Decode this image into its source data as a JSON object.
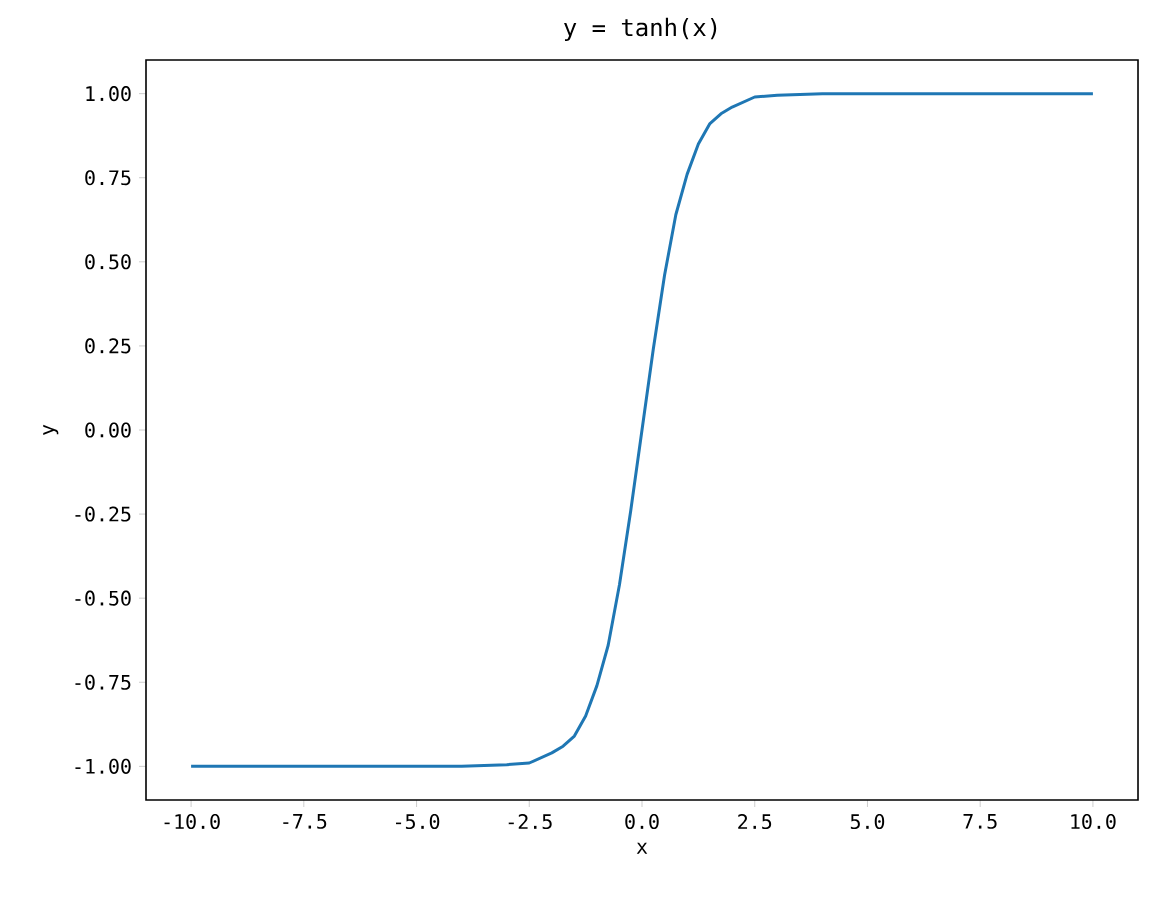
{
  "chart_data": {
    "type": "line",
    "title": "y = tanh(x)",
    "xlabel": "x",
    "ylabel": "y",
    "xlim": [
      -11,
      11
    ],
    "ylim": [
      -1.1,
      1.1
    ],
    "xticks": [
      {
        "value": -10,
        "label": "-10.0"
      },
      -7.5,
      {
        "value": -5,
        "label": "-5.0"
      },
      -2.5,
      {
        "value": 0,
        "label": "0.0"
      },
      2.5,
      {
        "value": 5,
        "label": "5.0"
      },
      7.5,
      {
        "value": 10,
        "label": "10.0"
      }
    ],
    "yticks": [
      {
        "value": -1,
        "label": "-1.00"
      },
      {
        "value": -0.75,
        "label": "-0.75"
      },
      {
        "value": -0.5,
        "label": "-0.50"
      },
      {
        "value": -0.25,
        "label": "-0.25"
      },
      {
        "value": 0,
        "label": "0.00"
      },
      {
        "value": 0.25,
        "label": "0.25"
      },
      {
        "value": 0.5,
        "label": "0.50"
      },
      {
        "value": 0.75,
        "label": "0.75"
      },
      {
        "value": 1,
        "label": "1.00"
      }
    ],
    "grid": false,
    "series": [
      {
        "color": "#1f77b4",
        "x": [
          -10,
          -8,
          -6,
          -4,
          -3,
          -2.5,
          -2,
          -1.75,
          -1.5,
          -1.25,
          -1,
          -0.75,
          -0.5,
          -0.25,
          0,
          0.25,
          0.5,
          0.75,
          1,
          1.25,
          1.5,
          1.75,
          2,
          2.5,
          3,
          4,
          6,
          8,
          10
        ],
        "values": [
          -1.0,
          -1.0,
          -1.0,
          -1.0,
          -0.995,
          -0.99,
          -0.96,
          -0.94,
          -0.91,
          -0.85,
          -0.76,
          -0.64,
          -0.46,
          -0.24,
          0.0,
          0.24,
          0.46,
          0.64,
          0.76,
          0.85,
          0.91,
          0.94,
          0.96,
          0.99,
          0.995,
          1.0,
          1.0,
          1.0,
          1.0
        ]
      }
    ]
  }
}
